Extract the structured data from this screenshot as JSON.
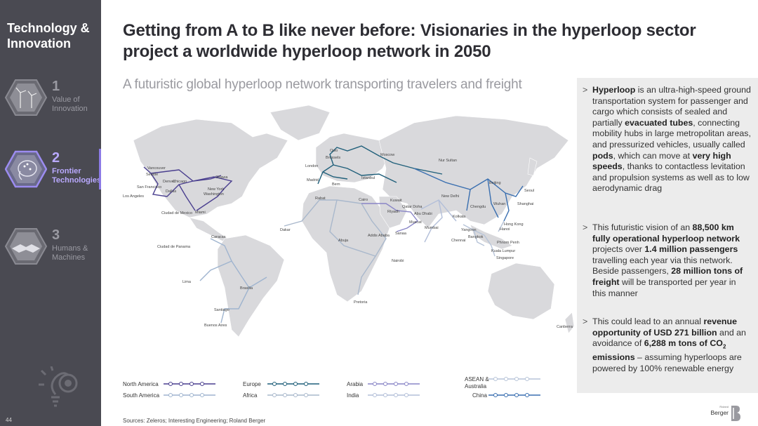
{
  "sidebar": {
    "title": "Technology & Innovation",
    "items": [
      {
        "number": "1",
        "label_line1": "Value of",
        "label_line2": "Innovation",
        "active": false,
        "icon": "wind-turbine-icon"
      },
      {
        "number": "2",
        "label_line1": "Frontier",
        "label_line2": "Technologies",
        "active": true,
        "icon": "ai-brain-icon"
      },
      {
        "number": "3",
        "label_line1": "Humans &",
        "label_line2": "Machines",
        "active": false,
        "icon": "handshake-icon"
      }
    ],
    "bottom_icon": "lightbulb-gear-icon",
    "page_number": "44",
    "accent_color": "#8c7ae6"
  },
  "header": {
    "title_line1": "Getting from A to B like never before: Visionaries in the hyperloop sector",
    "title_line2": "project a worldwide hyperloop network in 2050",
    "subtitle": "A futuristic global hyperloop network transporting travelers and freight"
  },
  "map": {
    "cities": [
      "Vancouver",
      "Seattle",
      "Denver",
      "Chicago",
      "Ottawa",
      "San Francisco",
      "Dallas",
      "New York",
      "Washington",
      "Los Angeles",
      "Ciudad de Mexico",
      "Miami",
      "Caracas",
      "Ciudad de Panama",
      "Lima",
      "Brasilia",
      "Santiago",
      "Buenos Aires",
      "Oslo",
      "Brussels",
      "London",
      "Madrid",
      "Bern",
      "Moscow",
      "Istanbul",
      "Rabat",
      "Dakar",
      "Cairo",
      "Kuwait",
      "Riyadh",
      "Qatar Doha",
      "Abu Dhabi",
      "Muscat",
      "Sanaa",
      "Addis Ababa",
      "Abuja",
      "Nairobi",
      "Pretoria",
      "Nur Sultan",
      "New Delhi",
      "Mumbai",
      "Kolkata",
      "Chengdu",
      "Beijing",
      "Seoul",
      "Wuhan",
      "Shanghai",
      "Hong Kong",
      "Hanoi",
      "Yangoon",
      "Bangkok",
      "Chennai",
      "Phnom Penh",
      "Kuala Lumpur",
      "Singapore",
      "Canberra"
    ]
  },
  "legend": {
    "north_america": {
      "label": "North America",
      "color": "#4a3f8f"
    },
    "south_america": {
      "label": "South America",
      "color": "#9fb4cf"
    },
    "europe": {
      "label": "Europe",
      "color": "#1f5f7a"
    },
    "africa": {
      "label": "Africa",
      "color": "#a9b8cc"
    },
    "arabia": {
      "label": "Arabia",
      "color": "#8a86c7"
    },
    "india": {
      "label": "India",
      "color": "#b3bfd9"
    },
    "asean_line1": "ASEAN &",
    "asean_line2": "Australia",
    "asean_color": "#b7c4d8",
    "china": {
      "label": "China",
      "color": "#3a6fb0"
    }
  },
  "panel": {
    "p1": {
      "a": "Hyperloop",
      "b": " is an ultra-high-speed ground transportation system for passenger and cargo which consists of sealed and partially ",
      "c": "evacuated tubes",
      "d": ", connecting mobility hubs in large metropolitan areas, and pressurized vehicles, usually called ",
      "e": "pods",
      "f": ", which can move at ",
      "g": "very high speeds",
      "h": ", thanks to contactless levitation and propulsion systems as well as to low aerodynamic drag"
    },
    "p2": {
      "a": "This futuristic vision of an ",
      "b": "88,500 km fully operational hyperloop network",
      "c": " projects over ",
      "d": "1.4 million passengers",
      "e": " travelling each year via this network. Beside passengers, ",
      "f": "28 million tons of freight",
      "g": " will be transported per year in this manner"
    },
    "p3": {
      "a": "This could lead to an annual ",
      "b": "revenue opportunity of USD 271 billion",
      "c": " and an avoidance of ",
      "d": "6,288 m tons of CO",
      "sub": "2",
      "e": " emissions",
      "f": " – assuming hyperloops are powered by 100% renewable energy"
    },
    "bullet": ">"
  },
  "footer": {
    "sources": "Sources: Zeleros; Interesting Engineering; Roland Berger",
    "logo_line1": "Roland",
    "logo_line2": "Berger"
  }
}
